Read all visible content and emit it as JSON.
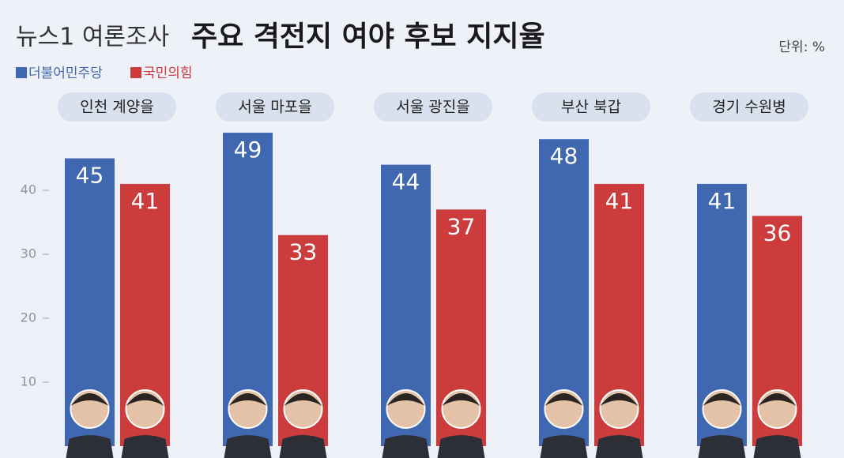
{
  "chart_data": {
    "type": "bar",
    "source": "뉴스1 여론조사",
    "title": "주요 격전지 여야 후보 지지율",
    "unit": "단위: %",
    "categories": [
      "인천 계양을",
      "서울 마포을",
      "서울 광진을",
      "부산 북갑",
      "경기 수원병"
    ],
    "series": [
      {
        "name": "더불어민주당",
        "color": "#4068b0",
        "values": [
          45,
          49,
          44,
          48,
          41
        ]
      },
      {
        "name": "국민의힘",
        "color": "#cc3c3c",
        "values": [
          41,
          33,
          37,
          41,
          36
        ]
      }
    ],
    "ylim": [
      0,
      50
    ],
    "yticks": [
      10,
      20,
      30,
      40
    ]
  }
}
